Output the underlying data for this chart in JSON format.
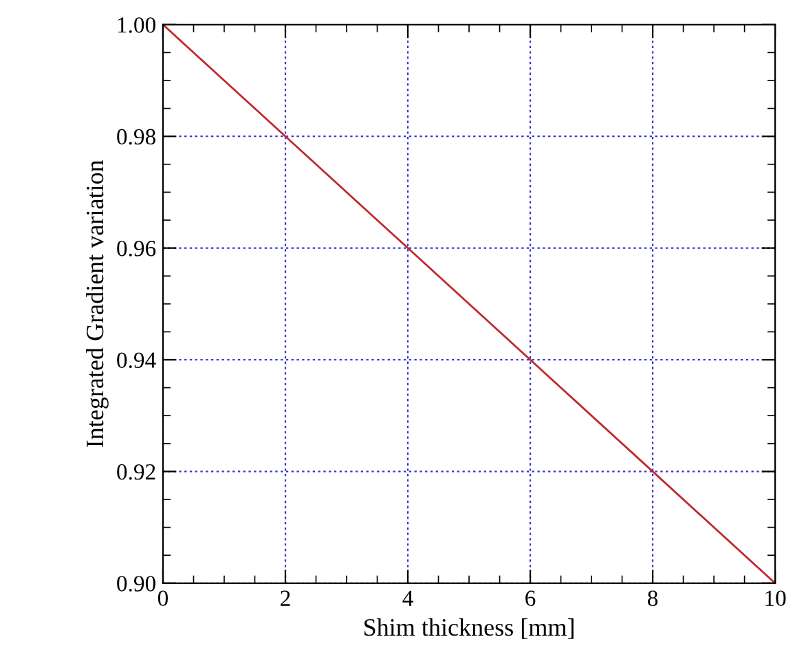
{
  "chart_data": {
    "type": "line",
    "xlabel": "Shim thickness [mm]",
    "ylabel": "Integrated Gradient variation",
    "x": [
      0,
      2,
      4,
      6,
      8,
      10
    ],
    "series": [
      {
        "color": "#c0282d",
        "values": [
          1.0,
          0.98,
          0.96,
          0.94,
          0.92,
          0.9
        ]
      }
    ],
    "xlim": [
      0,
      10
    ],
    "ylim": [
      0.9,
      1.0
    ],
    "xticks": [
      0,
      2,
      4,
      6,
      8,
      10
    ],
    "yticks": [
      {
        "value": 0.9,
        "label": "0.90"
      },
      {
        "value": 0.92,
        "label": "0.92"
      },
      {
        "value": 0.94,
        "label": "0.94"
      },
      {
        "value": 0.96,
        "label": "0.96"
      },
      {
        "value": 0.98,
        "label": "0.98"
      },
      {
        "value": 1.0,
        "label": "1.00"
      }
    ],
    "grid": true,
    "marker": "none",
    "line_style": "solid"
  }
}
